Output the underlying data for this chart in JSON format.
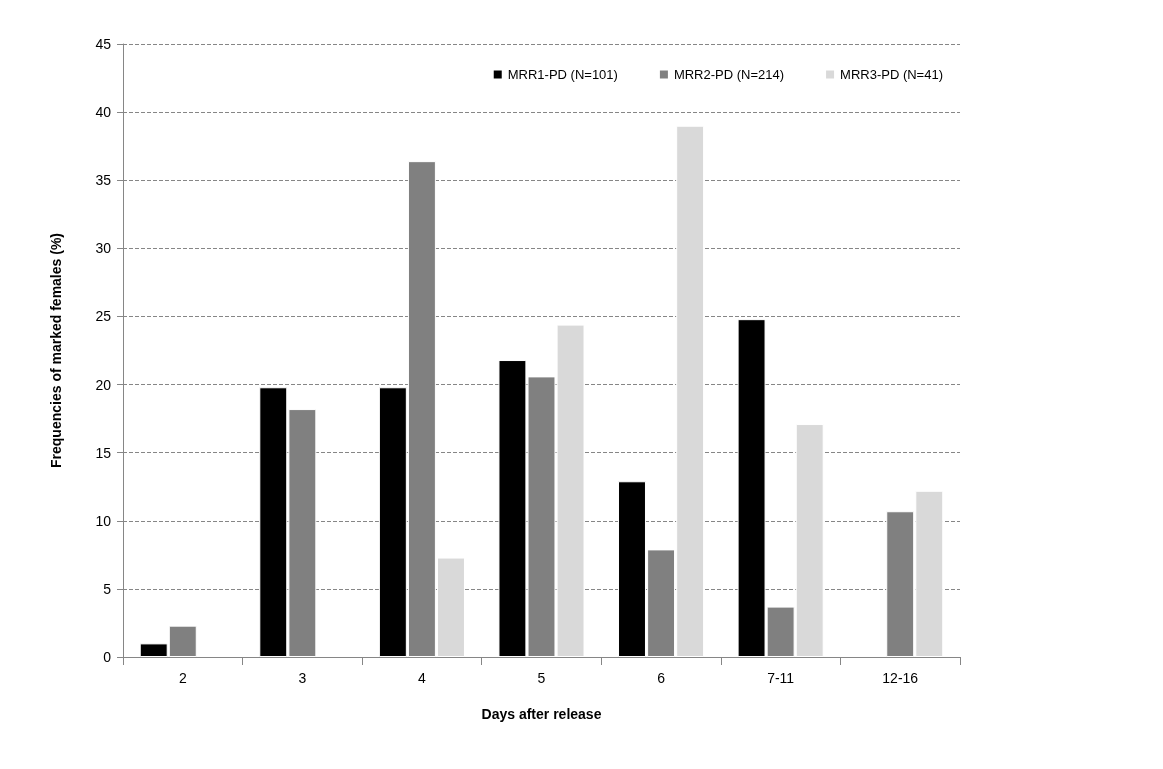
{
  "chart_data": {
    "type": "bar",
    "xlabel": "Days after release",
    "ylabel": "Frequencies of marked females (%)",
    "categories": [
      "2",
      "3",
      "4",
      "5",
      "6",
      "7-11",
      "12-16"
    ],
    "series": [
      {
        "name": "MRR1-PD (N=101)",
        "color": "#000000",
        "values": [
          1.0,
          19.8,
          19.8,
          21.8,
          12.9,
          24.8,
          null
        ]
      },
      {
        "name": "MRR2-PD (N=214)",
        "color": "#808080",
        "values": [
          2.3,
          18.2,
          36.4,
          20.6,
          7.9,
          3.7,
          10.7
        ]
      },
      {
        "name": "MRR3-PD (N=41)",
        "color": "#d9d9d9",
        "values": [
          null,
          null,
          7.3,
          24.4,
          39.0,
          17.1,
          12.2
        ]
      }
    ],
    "ylim": [
      0,
      45
    ],
    "yticks": [
      0,
      5,
      10,
      15,
      20,
      25,
      30,
      35,
      40,
      45
    ],
    "grid": "y",
    "legend": "top right"
  }
}
